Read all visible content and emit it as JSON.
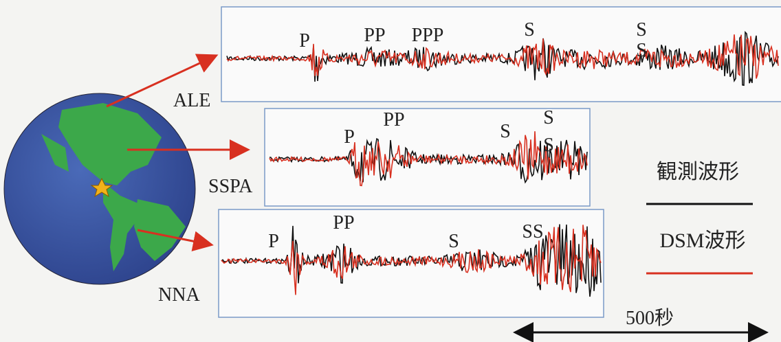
{
  "stations": [
    {
      "name": "ALE",
      "phases": [
        "P",
        "PP",
        "PPP",
        "S",
        "S",
        "S"
      ]
    },
    {
      "name": "SSPA",
      "phases": [
        "P",
        "PP",
        "S",
        "S",
        "S"
      ]
    },
    {
      "name": "NNA",
      "phases": [
        "P",
        "PP",
        "S",
        "SS"
      ]
    }
  ],
  "legend": {
    "observed": "観測波形",
    "synthetic": "DSM波形"
  },
  "scale": "500秒"
}
